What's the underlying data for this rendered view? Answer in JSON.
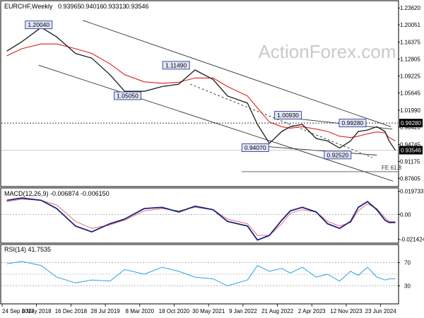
{
  "chart_data": [
    {
      "panel": "price",
      "type": "line",
      "title": "EURCHF,Weekly",
      "ohlc": [
        "0.93965",
        "0.94016",
        "0.93313",
        "0.93546"
      ],
      "watermark": "ActionForex.com",
      "ylim": [
        0.86,
        1.25
      ],
      "y_ticks": [
        "1.23620",
        "1.20051",
        "1.16375",
        "1.12805",
        "1.09225",
        "1.05645",
        "1.01990",
        "0.98420",
        "0.94745",
        "0.91175",
        "0.87605"
      ],
      "current_price": "0.93546",
      "highlight_level": "0.99280",
      "x": [
        "2017-09-24",
        "2018-01-01",
        "2018-05-06",
        "2018-08-15",
        "2018-12-16",
        "2019-04-01",
        "2019-07-28",
        "2019-11-01",
        "2020-03-08",
        "2020-07-01",
        "2020-10-18",
        "2021-02-01",
        "2021-05-30",
        "2021-09-01",
        "2022-01-09",
        "2022-03-15",
        "2022-06-01",
        "2022-08-21",
        "2022-10-15",
        "2023-01-01",
        "2023-04-02",
        "2023-06-15",
        "2023-09-01",
        "2023-11-12",
        "2024-01-01",
        "2024-03-01",
        "2024-05-01",
        "2024-06-23",
        "2024-07-20",
        "2024-08-30"
      ],
      "series": [
        {
          "values": [
            1.145,
            1.165,
            1.195,
            1.175,
            1.14,
            1.13,
            1.095,
            1.06,
            1.06,
            1.07,
            1.075,
            1.105,
            1.085,
            1.05,
            1.035,
            0.99,
            0.95,
            0.975,
            0.985,
            0.99,
            0.96,
            0.955,
            0.94,
            0.955,
            0.975,
            0.978,
            0.985,
            0.975,
            0.955,
            0.935
          ]
        },
        {
          "values": [
            1.135,
            1.15,
            1.16,
            1.16,
            1.15,
            1.14,
            1.118,
            1.095,
            1.08,
            1.077,
            1.079,
            1.088,
            1.088,
            1.07,
            1.05,
            1.025,
            0.995,
            0.985,
            0.982,
            0.985,
            0.98,
            0.975,
            0.965,
            0.962,
            0.965,
            0.97,
            0.974,
            0.972,
            0.962,
            0.955
          ]
        }
      ],
      "annotations": [
        {
          "label": "1.20040",
          "x": "2018-04-20",
          "y": 1.2004
        },
        {
          "label": "1.05050",
          "x": "2019-11-20",
          "y": 1.0505
        },
        {
          "label": "1.11490",
          "x": "2020-10-01",
          "y": 1.1149
        },
        {
          "label": "1.00930",
          "x": "2022-09-30",
          "y": 1.0093
        },
        {
          "label": "0.94070",
          "x": "2022-03-01",
          "y": 0.9407
        },
        {
          "label": "0.92520",
          "x": "2023-08-20",
          "y": 0.9252
        },
        {
          "label": "0.99280",
          "x": "2023-11-25",
          "y": 0.9928
        }
      ],
      "trendlines": [
        {
          "x": [
            "2019-02-01",
            "2024-08-01"
          ],
          "y": [
            1.21,
            0.985
          ]
        },
        {
          "x": [
            "2018-04-20",
            "2024-08-15"
          ],
          "y": [
            1.115,
            0.87
          ]
        },
        {
          "x": [
            "2022-09-01",
            "2024-08-10"
          ],
          "y": [
            1.005,
            0.98
          ]
        },
        {
          "x": [
            "2022-03-01",
            "2024-05-01"
          ],
          "y": [
            0.945,
            0.925
          ]
        },
        {
          "x": [
            "2021-01-01",
            "2024-04-01"
          ],
          "y": [
            1.075,
            0.92
          ]
        }
      ],
      "fib_label": "FE 61.8",
      "fib_level": 0.89
    },
    {
      "panel": "macd",
      "type": "line",
      "label": "MACD(12,26,9) -0.006874 -0.006150",
      "y_ticks": [
        "0.019733",
        "0.00",
        "-0.021424"
      ],
      "ylim": [
        -0.024,
        0.022
      ],
      "series": [
        {
          "values": [
            0.012,
            0.014,
            0.012,
            0.005,
            -0.01,
            -0.015,
            -0.008,
            -0.004,
            0.005,
            0.006,
            0.002,
            0.007,
            0.004,
            -0.006,
            -0.01,
            -0.022,
            -0.018,
            -0.005,
            0.003,
            0.006,
            0.002,
            -0.008,
            -0.012,
            -0.006,
            0.006,
            0.011,
            0.004,
            -0.005,
            -0.007,
            -0.007
          ]
        },
        {
          "values": [
            0.011,
            0.013,
            0.012,
            0.008,
            -0.006,
            -0.012,
            -0.009,
            -0.005,
            0.003,
            0.005,
            0.003,
            0.006,
            0.004,
            -0.004,
            -0.008,
            -0.018,
            -0.018,
            -0.008,
            0.001,
            0.004,
            0.002,
            -0.006,
            -0.01,
            -0.007,
            0.003,
            0.009,
            0.005,
            -0.003,
            -0.006,
            -0.006
          ]
        }
      ]
    },
    {
      "panel": "rsi",
      "type": "line",
      "label": "RSI(14) 41.7535",
      "y_ticks": [
        "70",
        "30"
      ],
      "ylim": [
        0,
        100
      ],
      "reference_lines": [
        70,
        50,
        30
      ],
      "series": [
        {
          "values": [
            68,
            72,
            65,
            45,
            35,
            40,
            38,
            58,
            50,
            62,
            55,
            45,
            42,
            30,
            40,
            65,
            55,
            60,
            52,
            62,
            45,
            50,
            38,
            55,
            48,
            62,
            45,
            40,
            42,
            42
          ]
        }
      ]
    }
  ],
  "time_axis": {
    "ticks": [
      "24 Sep 2017",
      "6 May 2018",
      "16 Dec 2018",
      "28 Jul 2019",
      "8 Mar 2020",
      "18 Oct 2020",
      "30 May 2021",
      "9 Jan 2022",
      "21 Aug 2022",
      "2 Apr 2023",
      "12 Nov 2023",
      "23 Jun 2024"
    ]
  },
  "colors": {
    "price": "#1a1a1a",
    "ma": "#e02020",
    "channel": "#333333",
    "label_box_border": "#1f1f8f",
    "label_box_fill": "#dfe6f5",
    "macd": "#1a237e",
    "macd_signal": "#e07070",
    "rsi": "#29a3e0",
    "highlight_bg": "#000000",
    "highlight_text": "#ffffff",
    "current_bg": "#000000",
    "current_text": "#ffffff",
    "watermark": "#c9c9c9"
  }
}
